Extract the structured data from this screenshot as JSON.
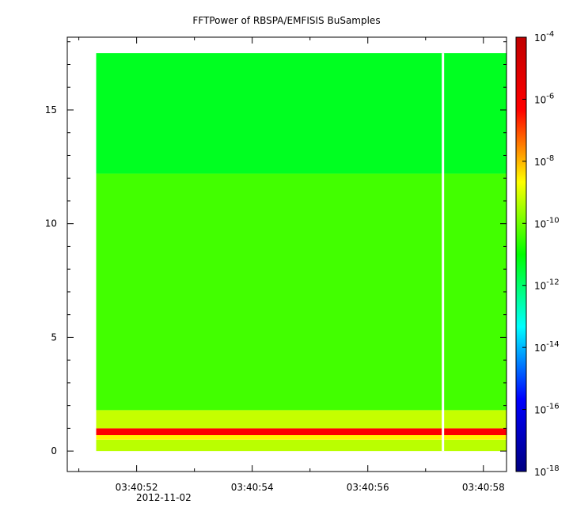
{
  "chart_data": {
    "type": "heatmap",
    "title": "FFTPower of RBSPA/EMFISIS  BuSamples",
    "xlabel": "",
    "ylabel": "",
    "x_date": "2012-11-02",
    "x_ticks": [
      "03:40:52",
      "03:40:54",
      "03:40:56",
      "03:40:58"
    ],
    "x_range_seconds": [
      50.8,
      58.4
    ],
    "data_x_range_seconds": [
      51.3,
      58.4
    ],
    "gap_x_seconds": 57.3,
    "y_ticks": [
      0,
      5,
      10,
      15
    ],
    "ylim": [
      -0.9,
      18.2
    ],
    "data_y_range": [
      0,
      17.5
    ],
    "colorbar": {
      "scale": "log",
      "range": [
        1e-18,
        0.0001
      ],
      "tick_labels": [
        {
          "base": "10",
          "exp": "-4"
        },
        {
          "base": "10",
          "exp": "-6"
        },
        {
          "base": "10",
          "exp": "-8"
        },
        {
          "base": "10",
          "exp": "-10"
        },
        {
          "base": "10",
          "exp": "-12"
        },
        {
          "base": "10",
          "exp": "-14"
        },
        {
          "base": "10",
          "exp": "-16"
        },
        {
          "base": "10",
          "exp": "-18"
        }
      ],
      "colors": [
        "#000080",
        "#0000ff",
        "#00ffff",
        "#00ff00",
        "#ffff00",
        "#ff0000",
        "#c00000"
      ]
    },
    "bands": [
      {
        "y_range": [
          0,
          0.5
        ],
        "log_power": -9.3
      },
      {
        "y_range": [
          0.5,
          0.7
        ],
        "log_power": -8.6
      },
      {
        "y_range": [
          0.7,
          1.0
        ],
        "log_power": -6.3
      },
      {
        "y_range": [
          1.0,
          1.8
        ],
        "log_power": -9.2
      },
      {
        "y_range": [
          1.8,
          12.2
        ],
        "log_power": -10.4
      },
      {
        "y_range": [
          12.2,
          17.5
        ],
        "log_power": -11.3
      }
    ]
  }
}
